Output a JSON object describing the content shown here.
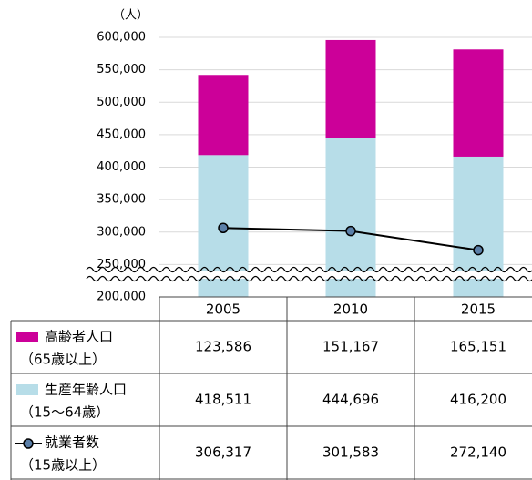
{
  "chart_data": {
    "type": "bar",
    "y_unit": "（人）",
    "categories": [
      "2005",
      "2010",
      "2015"
    ],
    "ylim": [
      200000,
      600000
    ],
    "yticks": [
      {
        "value": 200000,
        "label": "200,000"
      },
      {
        "value": 250000,
        "label": "250,000"
      },
      {
        "value": 300000,
        "label": "300,000"
      },
      {
        "value": 350000,
        "label": "350,000"
      },
      {
        "value": 400000,
        "label": "400,000"
      },
      {
        "value": 450000,
        "label": "450,000"
      },
      {
        "value": 500000,
        "label": "500,000"
      },
      {
        "value": 550000,
        "label": "550,000"
      },
      {
        "value": 600000,
        "label": "600,000"
      }
    ],
    "grid": true,
    "series": [
      {
        "name": "生産年齢人口",
        "sublabel": "（15～64歳）",
        "color": "#b7dde8",
        "type": "bar",
        "values": [
          418511,
          444696,
          416200
        ],
        "value_labels": [
          "418,511",
          "444,696",
          "416,200"
        ]
      },
      {
        "name": "高齢者人口",
        "sublabel": "（65歳以上）",
        "color": "#cc0099",
        "type": "bar",
        "values": [
          123586,
          151167,
          165151
        ],
        "value_labels": [
          "123,586",
          "151,167",
          "165,151"
        ]
      },
      {
        "name": "就業者数",
        "sublabel": "（15歳以上）",
        "color": "#000000",
        "marker_color": "#5b7fa8",
        "type": "line",
        "values": [
          306317,
          301583,
          272140
        ],
        "value_labels": [
          "306,317",
          "301,583",
          "272,140"
        ]
      }
    ],
    "table_row_order": [
      1,
      0,
      2
    ]
  }
}
